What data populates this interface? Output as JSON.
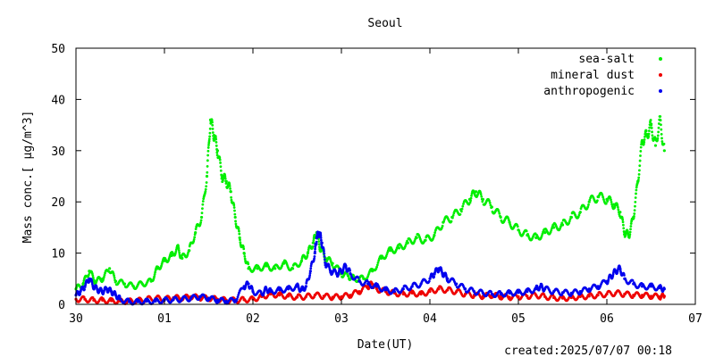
{
  "chart_data": {
    "type": "scatter",
    "title": "Seoul",
    "xlabel": "Date(UT)",
    "ylabel": "Mass conc.[ μg/m^3]",
    "footer": "created:2025/07/07 00:18",
    "xlim": [
      0,
      7
    ],
    "ylim": [
      0,
      50
    ],
    "x_tick_labels": [
      "30",
      "01",
      "02",
      "03",
      "04",
      "05",
      "06",
      "07"
    ],
    "y_ticks": [
      0,
      10,
      20,
      30,
      40,
      50
    ],
    "legend_position": "top-right",
    "grid": false,
    "series": [
      {
        "name": "sea-salt",
        "color": "#00ee00",
        "points": [
          [
            0.0,
            3.0
          ],
          [
            0.08,
            4.0
          ],
          [
            0.15,
            6.5
          ],
          [
            0.22,
            4.5
          ],
          [
            0.3,
            5.0
          ],
          [
            0.38,
            7.0
          ],
          [
            0.45,
            4.5
          ],
          [
            0.55,
            4.0
          ],
          [
            0.65,
            3.5
          ],
          [
            0.75,
            4.0
          ],
          [
            0.85,
            4.5
          ],
          [
            0.92,
            7.0
          ],
          [
            1.0,
            8.5
          ],
          [
            1.08,
            9.5
          ],
          [
            1.15,
            11.0
          ],
          [
            1.2,
            9.0
          ],
          [
            1.28,
            10.5
          ],
          [
            1.35,
            14.0
          ],
          [
            1.42,
            17.0
          ],
          [
            1.48,
            25.0
          ],
          [
            1.52,
            36.0
          ],
          [
            1.56,
            33.0
          ],
          [
            1.6,
            30.0
          ],
          [
            1.65,
            25.0
          ],
          [
            1.7,
            24.0
          ],
          [
            1.75,
            22.0
          ],
          [
            1.8,
            17.0
          ],
          [
            1.85,
            13.0
          ],
          [
            1.9,
            10.0
          ],
          [
            1.95,
            7.0
          ],
          [
            2.05,
            7.0
          ],
          [
            2.15,
            7.5
          ],
          [
            2.25,
            7.0
          ],
          [
            2.35,
            8.0
          ],
          [
            2.45,
            7.0
          ],
          [
            2.55,
            8.5
          ],
          [
            2.62,
            10.0
          ],
          [
            2.68,
            12.0
          ],
          [
            2.72,
            14.0
          ],
          [
            2.76,
            11.0
          ],
          [
            2.82,
            9.0
          ],
          [
            2.9,
            8.0
          ],
          [
            3.0,
            6.0
          ],
          [
            3.08,
            5.5
          ],
          [
            3.15,
            5.0
          ],
          [
            3.25,
            5.0
          ],
          [
            3.35,
            6.5
          ],
          [
            3.45,
            9.0
          ],
          [
            3.55,
            10.5
          ],
          [
            3.65,
            11.0
          ],
          [
            3.75,
            12.0
          ],
          [
            3.85,
            13.0
          ],
          [
            3.95,
            12.5
          ],
          [
            4.05,
            13.5
          ],
          [
            4.15,
            16.0
          ],
          [
            4.25,
            17.0
          ],
          [
            4.35,
            18.5
          ],
          [
            4.45,
            20.5
          ],
          [
            4.52,
            22.0
          ],
          [
            4.6,
            20.5
          ],
          [
            4.7,
            19.0
          ],
          [
            4.8,
            17.0
          ],
          [
            4.9,
            16.0
          ],
          [
            5.0,
            14.5
          ],
          [
            5.1,
            13.5
          ],
          [
            5.2,
            13.0
          ],
          [
            5.3,
            14.0
          ],
          [
            5.4,
            15.0
          ],
          [
            5.5,
            15.5
          ],
          [
            5.6,
            17.0
          ],
          [
            5.7,
            18.0
          ],
          [
            5.8,
            20.0
          ],
          [
            5.9,
            21.0
          ],
          [
            6.0,
            20.5
          ],
          [
            6.08,
            19.5
          ],
          [
            6.15,
            18.0
          ],
          [
            6.2,
            14.0
          ],
          [
            6.25,
            13.5
          ],
          [
            6.3,
            17.0
          ],
          [
            6.35,
            24.0
          ],
          [
            6.4,
            32.0
          ],
          [
            6.45,
            33.0
          ],
          [
            6.5,
            35.0
          ],
          [
            6.55,
            31.0
          ],
          [
            6.6,
            36.0
          ],
          [
            6.65,
            30.0
          ]
        ]
      },
      {
        "name": "mineral dust",
        "color": "#ee0000",
        "points": [
          [
            0.0,
            1.0
          ],
          [
            0.1,
            1.0
          ],
          [
            0.2,
            0.8
          ],
          [
            0.3,
            0.8
          ],
          [
            0.4,
            0.7
          ],
          [
            0.5,
            0.6
          ],
          [
            0.6,
            0.6
          ],
          [
            0.7,
            0.7
          ],
          [
            0.8,
            1.0
          ],
          [
            0.9,
            1.2
          ],
          [
            1.0,
            1.0
          ],
          [
            1.1,
            1.3
          ],
          [
            1.2,
            1.2
          ],
          [
            1.3,
            1.5
          ],
          [
            1.4,
            1.3
          ],
          [
            1.5,
            1.2
          ],
          [
            1.6,
            1.0
          ],
          [
            1.7,
            0.8
          ],
          [
            1.8,
            0.8
          ],
          [
            1.9,
            0.9
          ],
          [
            2.0,
            1.0
          ],
          [
            2.1,
            1.5
          ],
          [
            2.2,
            2.0
          ],
          [
            2.3,
            1.8
          ],
          [
            2.4,
            1.6
          ],
          [
            2.5,
            1.4
          ],
          [
            2.6,
            1.5
          ],
          [
            2.7,
            1.8
          ],
          [
            2.8,
            1.6
          ],
          [
            2.9,
            1.4
          ],
          [
            3.0,
            1.5
          ],
          [
            3.1,
            1.8
          ],
          [
            3.2,
            2.5
          ],
          [
            3.3,
            3.5
          ],
          [
            3.35,
            4.0
          ],
          [
            3.4,
            3.0
          ],
          [
            3.5,
            2.5
          ],
          [
            3.6,
            2.2
          ],
          [
            3.7,
            2.0
          ],
          [
            3.8,
            2.2
          ],
          [
            3.9,
            2.0
          ],
          [
            4.0,
            2.5
          ],
          [
            4.1,
            3.0
          ],
          [
            4.2,
            2.8
          ],
          [
            4.3,
            2.5
          ],
          [
            4.4,
            2.0
          ],
          [
            4.5,
            1.8
          ],
          [
            4.6,
            1.6
          ],
          [
            4.7,
            1.8
          ],
          [
            4.8,
            1.5
          ],
          [
            4.9,
            1.4
          ],
          [
            5.0,
            1.5
          ],
          [
            5.1,
            1.6
          ],
          [
            5.2,
            1.8
          ],
          [
            5.3,
            1.5
          ],
          [
            5.4,
            1.3
          ],
          [
            5.5,
            1.2
          ],
          [
            5.6,
            1.3
          ],
          [
            5.7,
            1.5
          ],
          [
            5.8,
            1.6
          ],
          [
            5.9,
            1.8
          ],
          [
            6.0,
            2.0
          ],
          [
            6.1,
            2.2
          ],
          [
            6.2,
            2.0
          ],
          [
            6.3,
            1.8
          ],
          [
            6.4,
            1.8
          ],
          [
            6.5,
            1.6
          ],
          [
            6.6,
            1.5
          ],
          [
            6.65,
            1.6
          ]
        ]
      },
      {
        "name": "anthropogenic",
        "color": "#0000ee",
        "points": [
          [
            0.0,
            1.8
          ],
          [
            0.05,
            2.5
          ],
          [
            0.1,
            3.5
          ],
          [
            0.15,
            5.0
          ],
          [
            0.2,
            3.5
          ],
          [
            0.25,
            2.8
          ],
          [
            0.3,
            2.5
          ],
          [
            0.35,
            3.0
          ],
          [
            0.4,
            2.5
          ],
          [
            0.45,
            1.8
          ],
          [
            0.5,
            1.0
          ],
          [
            0.6,
            0.5
          ],
          [
            0.7,
            0.5
          ],
          [
            0.8,
            0.6
          ],
          [
            0.9,
            0.6
          ],
          [
            1.0,
            0.8
          ],
          [
            1.1,
            0.9
          ],
          [
            1.2,
            1.0
          ],
          [
            1.3,
            1.2
          ],
          [
            1.4,
            1.5
          ],
          [
            1.5,
            1.2
          ],
          [
            1.6,
            0.8
          ],
          [
            1.7,
            0.6
          ],
          [
            1.8,
            0.8
          ],
          [
            1.9,
            3.5
          ],
          [
            1.95,
            4.0
          ],
          [
            2.0,
            2.5
          ],
          [
            2.1,
            2.0
          ],
          [
            2.15,
            3.0
          ],
          [
            2.2,
            2.5
          ],
          [
            2.3,
            2.8
          ],
          [
            2.4,
            3.0
          ],
          [
            2.5,
            3.5
          ],
          [
            2.55,
            2.8
          ],
          [
            2.6,
            3.5
          ],
          [
            2.65,
            6.5
          ],
          [
            2.7,
            10.0
          ],
          [
            2.72,
            13.0
          ],
          [
            2.75,
            14.0
          ],
          [
            2.78,
            12.0
          ],
          [
            2.82,
            8.0
          ],
          [
            2.88,
            6.5
          ],
          [
            2.95,
            6.0
          ],
          [
            3.0,
            6.5
          ],
          [
            3.05,
            7.5
          ],
          [
            3.1,
            6.0
          ],
          [
            3.2,
            4.5
          ],
          [
            3.3,
            4.0
          ],
          [
            3.4,
            3.5
          ],
          [
            3.5,
            2.8
          ],
          [
            3.6,
            2.5
          ],
          [
            3.7,
            3.0
          ],
          [
            3.8,
            3.5
          ],
          [
            3.9,
            4.0
          ],
          [
            4.0,
            5.0
          ],
          [
            4.05,
            6.0
          ],
          [
            4.1,
            7.0
          ],
          [
            4.15,
            6.0
          ],
          [
            4.2,
            5.0
          ],
          [
            4.3,
            4.0
          ],
          [
            4.4,
            3.0
          ],
          [
            4.5,
            2.5
          ],
          [
            4.6,
            2.2
          ],
          [
            4.7,
            2.0
          ],
          [
            4.8,
            2.0
          ],
          [
            4.9,
            2.2
          ],
          [
            5.0,
            2.3
          ],
          [
            5.1,
            2.5
          ],
          [
            5.2,
            3.0
          ],
          [
            5.25,
            3.5
          ],
          [
            5.3,
            3.0
          ],
          [
            5.4,
            2.5
          ],
          [
            5.5,
            2.3
          ],
          [
            5.6,
            2.2
          ],
          [
            5.7,
            2.5
          ],
          [
            5.8,
            3.0
          ],
          [
            5.9,
            3.5
          ],
          [
            6.0,
            4.5
          ],
          [
            6.05,
            5.5
          ],
          [
            6.1,
            6.5
          ],
          [
            6.15,
            7.0
          ],
          [
            6.2,
            5.0
          ],
          [
            6.3,
            4.0
          ],
          [
            6.4,
            3.5
          ],
          [
            6.5,
            3.5
          ],
          [
            6.6,
            3.2
          ],
          [
            6.65,
            3.0
          ]
        ]
      }
    ]
  }
}
